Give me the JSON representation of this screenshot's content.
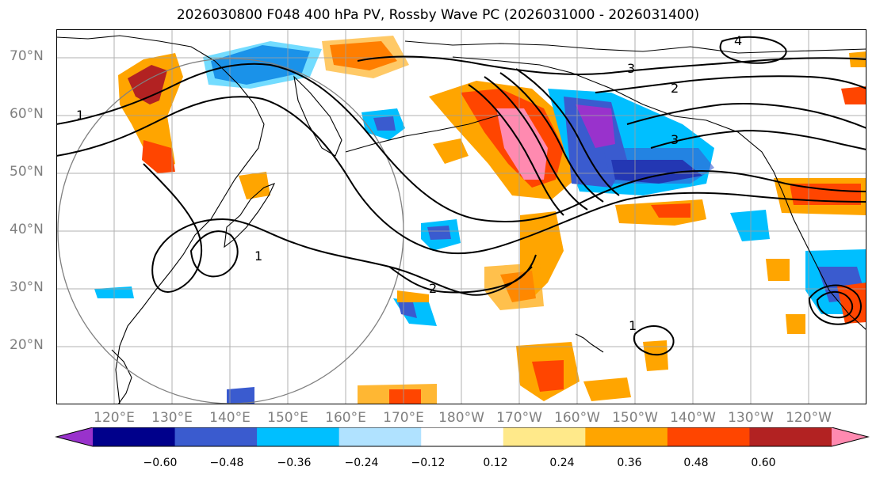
{
  "title": "2026030800 F048 400 hPa PV, Rossby Wave PC (2026031000 - 2026031400)",
  "lat_labels": [
    "70°N",
    "60°N",
    "50°N",
    "40°N",
    "30°N",
    "20°N"
  ],
  "lon_labels": [
    "120°E",
    "130°E",
    "140°E",
    "150°E",
    "160°E",
    "170°E",
    "180°W",
    "170°W",
    "160°W",
    "150°W",
    "140°W",
    "130°W",
    "120°W"
  ],
  "contour_labels": [
    "1",
    "2",
    "3",
    "4"
  ],
  "colorbar": {
    "ticks": [
      "−0.60",
      "−0.48",
      "−0.36",
      "−0.24",
      "−0.12",
      "0.12",
      "0.24",
      "0.36",
      "0.48",
      "0.60"
    ],
    "colors": [
      "#9932cc",
      "#00008b",
      "#3a5bcf",
      "#00bfff",
      "#b0e2ff",
      "#ffffff",
      "#ffe98a",
      "#ffa500",
      "#ff4500",
      "#b22222",
      "#ff8ab0"
    ]
  },
  "colors": {
    "contour": "#000000",
    "grid": "#a0a0a0",
    "coast": "#000000",
    "circle": "#808080",
    "axis_label": "#7f7f7f"
  }
}
